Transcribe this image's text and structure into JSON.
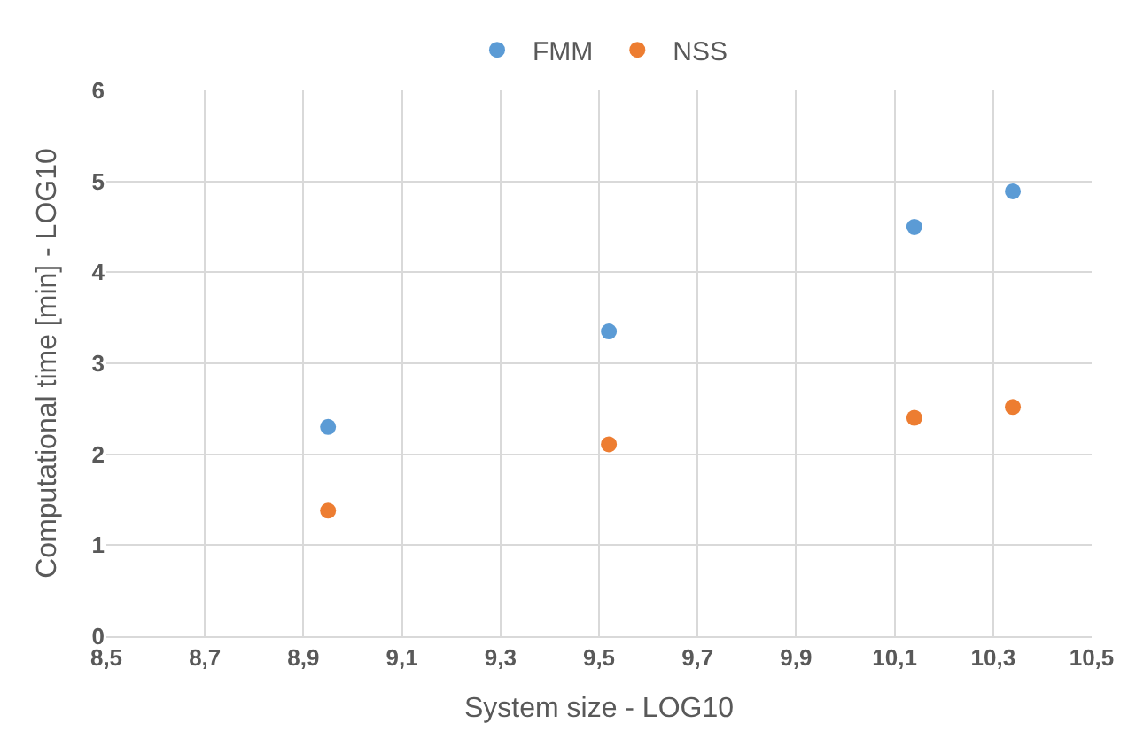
{
  "chart_data": {
    "type": "scatter",
    "xlabel": "System size - LOG10",
    "ylabel": "Computational time [min] - LOG10",
    "x": [
      8.95,
      9.52,
      10.14,
      10.34
    ],
    "series": [
      {
        "name": "FMM",
        "color": "#5b9bd5",
        "values": [
          2.3,
          3.35,
          4.5,
          4.89
        ]
      },
      {
        "name": "NSS",
        "color": "#ed7d31",
        "values": [
          1.38,
          2.11,
          2.4,
          2.52
        ]
      }
    ],
    "xlim": [
      8.5,
      10.5
    ],
    "xticks": [
      {
        "value": 8.5,
        "label": "8,5"
      },
      {
        "value": 8.7,
        "label": "8,7"
      },
      {
        "value": 8.9,
        "label": "8,9"
      },
      {
        "value": 9.1,
        "label": "9,1"
      },
      {
        "value": 9.3,
        "label": "9,3"
      },
      {
        "value": 9.5,
        "label": "9,5"
      },
      {
        "value": 9.7,
        "label": "9,7"
      },
      {
        "value": 9.9,
        "label": "9,9"
      },
      {
        "value": 10.1,
        "label": "10,1"
      },
      {
        "value": 10.3,
        "label": "10,3"
      },
      {
        "value": 10.5,
        "label": "10,5"
      }
    ],
    "ylim": [
      0,
      6
    ],
    "yticks": [
      0,
      1,
      2,
      3,
      4,
      5,
      6
    ],
    "grid": true,
    "legend": "top",
    "marker": "circle"
  }
}
